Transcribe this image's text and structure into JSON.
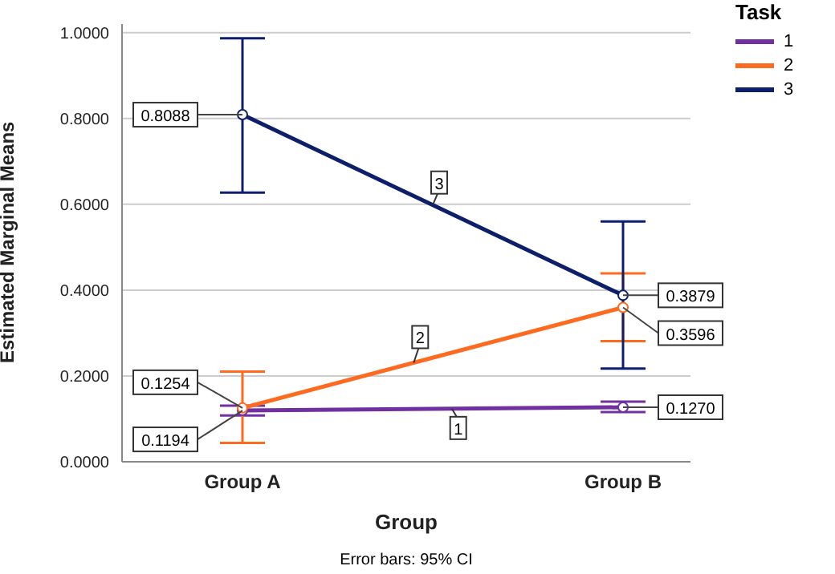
{
  "chart_data": {
    "type": "line",
    "xlabel": "Group",
    "ylabel": "Estimated Marginal Means",
    "legend_title": "Task",
    "categories": [
      "Group A",
      "Group B"
    ],
    "series": [
      {
        "name": "1",
        "color": "#7030a0",
        "values": [
          0.1194,
          0.127
        ],
        "value_labels": [
          "0.1194",
          "0.1270"
        ],
        "errors": [
          [
            0.108,
            0.131
          ],
          [
            0.116,
            0.14
          ]
        ]
      },
      {
        "name": "2",
        "color": "#ff6a21",
        "values": [
          0.1254,
          0.3596
        ],
        "value_labels": [
          "0.1254",
          "0.3596"
        ],
        "errors": [
          [
            0.044,
            0.21
          ],
          [
            0.281,
            0.439
          ]
        ]
      },
      {
        "name": "3",
        "color": "#0d1f6b",
        "values": [
          0.8088,
          0.3879
        ],
        "value_labels": [
          "0.8088",
          "0.3879"
        ],
        "errors": [
          [
            0.627,
            0.987
          ],
          [
            0.217,
            0.56
          ]
        ]
      }
    ],
    "ylim": [
      0,
      1.02
    ],
    "yticks": [
      {
        "value": 0,
        "label": "0.0000"
      },
      {
        "value": 0.2,
        "label": "0.2000"
      },
      {
        "value": 0.4,
        "label": "0.4000"
      },
      {
        "value": 0.6,
        "label": "0.6000"
      },
      {
        "value": 0.8,
        "label": "0.8000"
      },
      {
        "value": 1,
        "label": "1.0000"
      }
    ],
    "grid": "y",
    "legend": "top right",
    "marker": "circle",
    "line_style": "solid",
    "annotations": [
      "Error bars: 95% CI"
    ]
  }
}
